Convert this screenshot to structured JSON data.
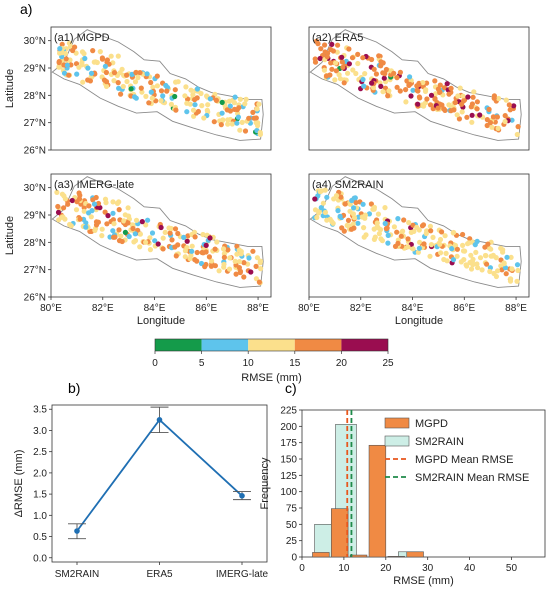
{
  "panel_labels": {
    "a": "a)",
    "b": "b)",
    "c": "c)"
  },
  "colors": {
    "map_border": "#8a8a8a",
    "bin_0_5": "#149b4a",
    "bin_5_10": "#5ec4ec",
    "bin_10_15": "#fbe08c",
    "bin_15_20": "#f08a44",
    "bin_20_25": "#9a0d50",
    "line_b": "#1f6fb3",
    "mgpd_bar": "#f08a44",
    "sm2rain_bar": "#cdeee6",
    "mgpd_mean_line": "#e8561c",
    "sm2rain_mean_line": "#1f8a4a"
  },
  "chart_data": [
    {
      "type": "scatter",
      "panel": "a1",
      "title": "(a1) MGPD",
      "xlabel": "",
      "ylabel": "Latitude",
      "x_ticks": [],
      "y_ticks": [
        "30°N",
        "29°N",
        "28°N",
        "27°N",
        "26°N"
      ],
      "xlim": [
        80,
        88.5
      ],
      "ylim": [
        26,
        30.5
      ],
      "counts_by_bin": {
        "0-5": 6,
        "5-10": 45,
        "10-15": 130,
        "15-20": 70,
        "20-25": 0
      }
    },
    {
      "type": "scatter",
      "panel": "a2",
      "title": "(a2) ERA5",
      "xlabel": "",
      "ylabel": "",
      "x_ticks": [],
      "y_ticks": [],
      "xlim": [
        80,
        88.5
      ],
      "ylim": [
        26,
        30.5
      ],
      "counts_by_bin": {
        "0-5": 2,
        "5-10": 15,
        "10-15": 75,
        "15-20": 130,
        "20-25": 30
      }
    },
    {
      "type": "scatter",
      "panel": "a3",
      "title": "(a3) IMERG-late",
      "xlabel": "Longitude",
      "ylabel": "Latitude",
      "x_ticks": [
        "80°E",
        "82°E",
        "84°E",
        "86°E",
        "88°E"
      ],
      "y_ticks": [
        "30°N",
        "29°N",
        "28°N",
        "27°N",
        "26°N"
      ],
      "xlim": [
        80,
        88.5
      ],
      "ylim": [
        26,
        30.5
      ],
      "counts_by_bin": {
        "0-5": 1,
        "5-10": 30,
        "10-15": 110,
        "15-20": 95,
        "20-25": 14
      }
    },
    {
      "type": "scatter",
      "panel": "a4",
      "title": "(a4) SM2RAIN",
      "xlabel": "Longitude",
      "ylabel": "",
      "x_ticks": [
        "80°E",
        "82°E",
        "84°E",
        "86°E",
        "88°E"
      ],
      "y_ticks": [],
      "xlim": [
        80,
        88.5
      ],
      "ylim": [
        26,
        30.5
      ],
      "counts_by_bin": {
        "0-5": 0,
        "5-10": 40,
        "10-15": 150,
        "15-20": 55,
        "20-25": 6
      }
    },
    {
      "type": "colorbar",
      "label": "RMSE (mm)",
      "ticks": [
        "0",
        "5",
        "10",
        "15",
        "20",
        "25"
      ],
      "bins": [
        "0-5",
        "5-10",
        "10-15",
        "15-20",
        "20-25"
      ]
    },
    {
      "type": "line",
      "panel": "b",
      "categories": [
        "SM2RAIN",
        "ERA5",
        "IMERG-late"
      ],
      "values": [
        0.63,
        3.25,
        1.46
      ],
      "error_low": [
        0.45,
        2.95,
        1.37
      ],
      "error_high": [
        0.8,
        3.55,
        1.56
      ],
      "ylabel": "ΔRMSE (mm)",
      "xlabel": "",
      "ylim": [
        -0.1,
        3.6
      ],
      "y_ticks": [
        "0.0",
        "0.5",
        "1.0",
        "1.5",
        "2.0",
        "2.5",
        "3.0",
        "3.5"
      ],
      "grid": false
    },
    {
      "type": "bar",
      "panel": "c",
      "xlabel": "RMSE (mm)",
      "ylabel": "Frequency",
      "x_ticks": [
        "0",
        "10",
        "20",
        "30",
        "40",
        "50"
      ],
      "y_ticks": [
        "0",
        "25",
        "50",
        "75",
        "100",
        "125",
        "150",
        "175",
        "200",
        "225"
      ],
      "xlim": [
        0,
        58
      ],
      "ylim": [
        0,
        225
      ],
      "series": [
        {
          "name": "MGPD",
          "bins": [
            [
              2.5,
              6.5
            ],
            [
              7,
              11
            ],
            [
              11.5,
              15.5
            ],
            [
              16,
              20
            ],
            [
              20.5,
              24.5
            ],
            [
              25,
              29
            ],
            [
              29.5,
              33.5
            ],
            [
              34,
              38
            ],
            [
              38.5,
              42.5
            ],
            [
              43,
              47
            ],
            [
              47.5,
              51.5
            ],
            [
              52,
              56
            ]
          ],
          "values": [
            7,
            74,
            3,
            171,
            1,
            8,
            0,
            0,
            0,
            0,
            0,
            0
          ]
        },
        {
          "name": "SM2RAIN",
          "bins": [
            [
              3,
              8
            ],
            [
              8,
              13
            ],
            [
              13,
              18
            ],
            [
              18,
              23
            ],
            [
              23,
              28
            ],
            [
              28,
              33
            ],
            [
              33,
              38
            ],
            [
              38,
              43
            ],
            [
              43,
              48
            ],
            [
              48,
              53
            ],
            [
              53,
              58
            ]
          ],
          "values": [
            50,
            203,
            0,
            0,
            8,
            0,
            0,
            0,
            0,
            0,
            0
          ]
        }
      ],
      "mean_lines": [
        {
          "name": "MGPD Mean RMSE",
          "value": 10.8
        },
        {
          "name": "SM2RAIN Mean RMSE",
          "value": 11.8
        }
      ],
      "legend": "top-right"
    }
  ]
}
